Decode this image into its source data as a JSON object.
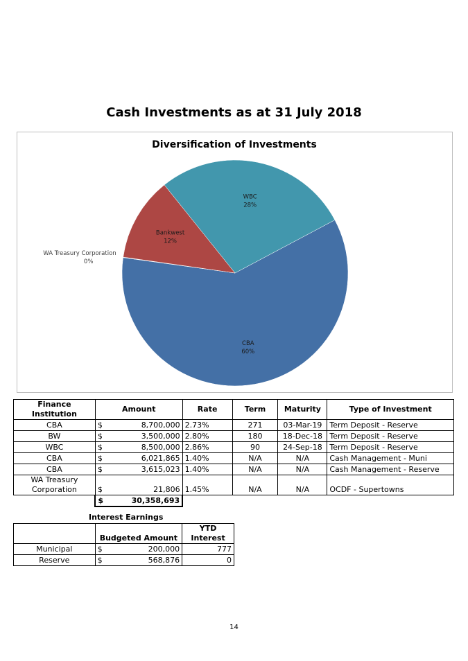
{
  "page": {
    "title": "Cash Investments as at 31 July 2018",
    "page_number": "14"
  },
  "chart_data": {
    "type": "pie",
    "title": "Diversification of Investments",
    "slices": [
      {
        "name": "CBA",
        "value": 60,
        "label": "60%",
        "color": "#4470a6"
      },
      {
        "name": "WA Treasury Corporation",
        "value": 0.07,
        "label": "0%",
        "color": "#8fa8c8"
      },
      {
        "name": "Bankwest",
        "value": 12,
        "label": "12%",
        "color": "#ad4744"
      },
      {
        "name": "WBC",
        "value": 28,
        "label": "28%",
        "color": "#4297ad"
      }
    ]
  },
  "investments": {
    "headers": [
      "Finance Institution",
      "Amount",
      "Rate",
      "Term",
      "Maturity",
      "Type of Investment"
    ],
    "rows": [
      {
        "institution": "CBA",
        "currency": "$",
        "amount": "8,700,000",
        "rate": "2.73%",
        "term": "271",
        "maturity": "03-Mar-19",
        "type": "Term Deposit - Reserve"
      },
      {
        "institution": "BW",
        "currency": "$",
        "amount": "3,500,000",
        "rate": "2.80%",
        "term": "180",
        "maturity": "18-Dec-18",
        "type": "Term Deposit - Reserve"
      },
      {
        "institution": "WBC",
        "currency": "$",
        "amount": "8,500,000",
        "rate": "2.86%",
        "term": "90",
        "maturity": "24-Sep-18",
        "type": "Term Deposit - Reserve"
      },
      {
        "institution": "CBA",
        "currency": "$",
        "amount": "6,021,865",
        "rate": "1.40%",
        "term": "N/A",
        "maturity": "N/A",
        "type": "Cash Management - Muni"
      },
      {
        "institution": "CBA",
        "currency": "$",
        "amount": "3,615,023",
        "rate": "1.40%",
        "term": "N/A",
        "maturity": "N/A",
        "type": "Cash Management - Reserve"
      }
    ],
    "last_row": {
      "institution_line1": "WA Treasury",
      "institution_line2": "Corporation",
      "currency": "$",
      "amount": "21,806",
      "rate": "1.45%",
      "term": "N/A",
      "maturity": "N/A",
      "type": "OCDF - Supertowns"
    },
    "total": {
      "currency": "$",
      "amount": "30,358,693"
    }
  },
  "interest": {
    "heading": "Interest Earnings",
    "col_budgeted": "Budgeted Amount",
    "col_ytd_line1": "YTD",
    "col_ytd_line2": "Interest",
    "rows": [
      {
        "label": "Municipal",
        "currency": "$",
        "budgeted": "200,000",
        "ytd": "777"
      },
      {
        "label": "Reserve",
        "currency": "$",
        "budgeted": "568,876",
        "ytd": "0"
      }
    ]
  }
}
